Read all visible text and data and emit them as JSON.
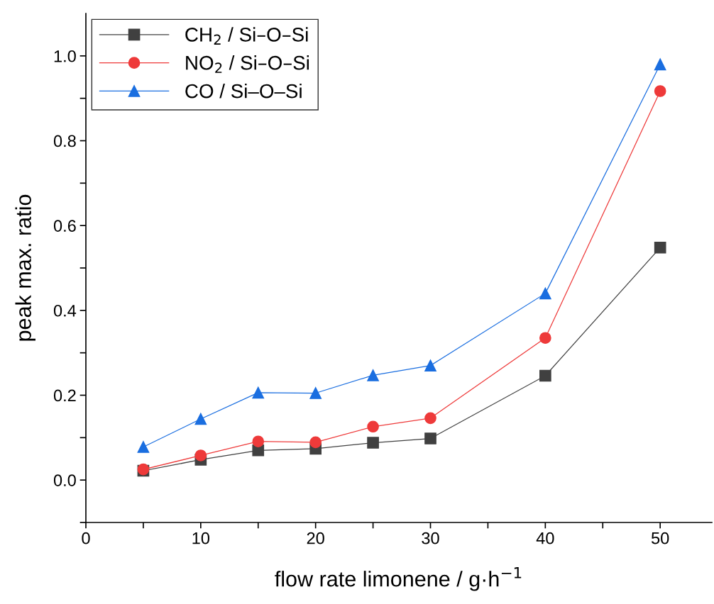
{
  "chart_data": {
    "type": "line",
    "xlabel": "flow rate limonene / g·h$^{−1}$",
    "ylabel": "peak max. ratio",
    "x": [
      5,
      10,
      15,
      20,
      25,
      30,
      40,
      50
    ],
    "series": [
      {
        "name": "CH$_{2}$ / Si–O–Si",
        "color": "#404040",
        "marker": "square",
        "values": [
          0.022,
          0.048,
          0.07,
          0.074,
          0.088,
          0.098,
          0.246,
          0.548
        ]
      },
      {
        "name": "NO$_{2}$ / Si–O–Si",
        "color": "#ee3a3a",
        "marker": "circle",
        "values": [
          0.025,
          0.058,
          0.091,
          0.089,
          0.126,
          0.146,
          0.335,
          0.917
        ]
      },
      {
        "name": "CO / Si–O–Si",
        "color": "#1a6ee0",
        "marker": "triangle",
        "values": [
          0.078,
          0.144,
          0.206,
          0.205,
          0.247,
          0.27,
          0.44,
          0.98
        ]
      }
    ],
    "xlim": [
      0,
      54.5
    ],
    "ylim": [
      -0.1,
      1.1
    ],
    "xticks": [
      0,
      {
        "value": 5,
        "label": null
      },
      10,
      {
        "value": 15,
        "label": null
      },
      20,
      {
        "value": 25,
        "label": null
      },
      30,
      {
        "value": 35,
        "label": null
      },
      40,
      {
        "value": 45,
        "label": null
      },
      50
    ],
    "yticks": [
      {
        "value": -0.1,
        "label": null
      },
      {
        "value": 0,
        "label": "0.0"
      },
      {
        "value": 0.1,
        "label": null
      },
      {
        "value": 0.2,
        "label": "0.2"
      },
      {
        "value": 0.3,
        "label": null
      },
      {
        "value": 0.4,
        "label": "0.4"
      },
      {
        "value": 0.5,
        "label": null
      },
      {
        "value": 0.6,
        "label": "0.6"
      },
      {
        "value": 0.7,
        "label": null
      },
      {
        "value": 0.8,
        "label": "0.8"
      },
      {
        "value": 0.9,
        "label": null
      },
      {
        "value": 1.0,
        "label": "1.0"
      }
    ],
    "grid": false,
    "legend": "top left",
    "line_style": "solid"
  }
}
